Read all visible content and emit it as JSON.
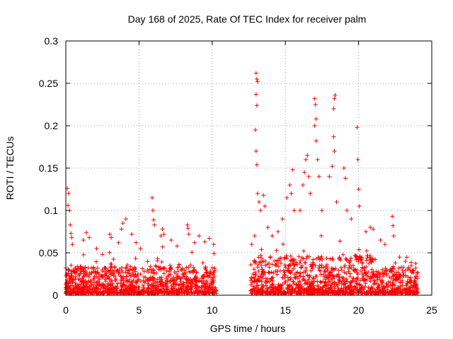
{
  "chart_data": {
    "type": "scatter",
    "title": "Day 168 of 2025, Rate Of TEC Index for receiver palm",
    "xlabel": "GPS time / hours",
    "ylabel": "ROTI / TECUs",
    "xlim": [
      0,
      25
    ],
    "ylim": [
      0,
      0.3
    ],
    "x_ticks": [
      0,
      5,
      10,
      15,
      20,
      25
    ],
    "y_ticks": [
      0,
      0.05,
      0.1,
      0.15,
      0.2,
      0.25,
      0.3
    ],
    "x_tick_labels": [
      "0",
      "5",
      "10",
      "15",
      "20",
      "25"
    ],
    "y_tick_labels": [
      "0",
      "0.05",
      "0.1",
      "0.15",
      "0.2",
      "0.25",
      "0.3"
    ],
    "grid": true,
    "marker": "+",
    "series_color": "#ff0000",
    "gap_hours": [
      10.3,
      12.6
    ],
    "points": [
      [
        0.1,
        0.126
      ],
      [
        0.2,
        0.12
      ],
      [
        0.15,
        0.106
      ],
      [
        0.25,
        0.1
      ],
      [
        0.3,
        0.083
      ],
      [
        0.35,
        0.073
      ],
      [
        0.4,
        0.068
      ],
      [
        0.45,
        0.06
      ],
      [
        1.2,
        0.065
      ],
      [
        1.4,
        0.074
      ],
      [
        1.6,
        0.068
      ],
      [
        2.1,
        0.055
      ],
      [
        2.5,
        0.048
      ],
      [
        3.0,
        0.072
      ],
      [
        3.1,
        0.068
      ],
      [
        3.6,
        0.062
      ],
      [
        3.8,
        0.078
      ],
      [
        3.9,
        0.085
      ],
      [
        4.1,
        0.09
      ],
      [
        4.5,
        0.072
      ],
      [
        4.8,
        0.062
      ],
      [
        5.1,
        0.055
      ],
      [
        5.9,
        0.115
      ],
      [
        5.95,
        0.1
      ],
      [
        6.0,
        0.089
      ],
      [
        6.05,
        0.083
      ],
      [
        6.5,
        0.07
      ],
      [
        6.6,
        0.078
      ],
      [
        6.7,
        0.072
      ],
      [
        7.2,
        0.065
      ],
      [
        7.6,
        0.058
      ],
      [
        8.3,
        0.083
      ],
      [
        8.35,
        0.079
      ],
      [
        8.4,
        0.072
      ],
      [
        8.8,
        0.062
      ],
      [
        9.1,
        0.07
      ],
      [
        9.5,
        0.063
      ],
      [
        9.8,
        0.067
      ],
      [
        10.1,
        0.06
      ],
      [
        12.7,
        0.06
      ],
      [
        12.9,
        0.07
      ],
      [
        13.0,
        0.262
      ],
      [
        13.05,
        0.255
      ],
      [
        13.1,
        0.252
      ],
      [
        13.0,
        0.237
      ],
      [
        13.05,
        0.224
      ],
      [
        12.95,
        0.195
      ],
      [
        13.0,
        0.17
      ],
      [
        13.05,
        0.154
      ],
      [
        13.1,
        0.12
      ],
      [
        13.2,
        0.11
      ],
      [
        13.3,
        0.1
      ],
      [
        13.5,
        0.118
      ],
      [
        13.6,
        0.105
      ],
      [
        13.8,
        0.08
      ],
      [
        14.1,
        0.07
      ],
      [
        14.5,
        0.075
      ],
      [
        14.8,
        0.09
      ],
      [
        15.1,
        0.115
      ],
      [
        15.3,
        0.13
      ],
      [
        15.5,
        0.148
      ],
      [
        15.4,
        0.12
      ],
      [
        15.6,
        0.1
      ],
      [
        16.0,
        0.1
      ],
      [
        16.2,
        0.13
      ],
      [
        16.3,
        0.145
      ],
      [
        16.4,
        0.16
      ],
      [
        16.5,
        0.165
      ],
      [
        16.6,
        0.14
      ],
      [
        16.7,
        0.12
      ],
      [
        17.0,
        0.232
      ],
      [
        17.05,
        0.225
      ],
      [
        17.1,
        0.208
      ],
      [
        17.0,
        0.2
      ],
      [
        17.1,
        0.182
      ],
      [
        17.2,
        0.16
      ],
      [
        17.3,
        0.14
      ],
      [
        17.5,
        0.1
      ],
      [
        18.0,
        0.14
      ],
      [
        18.2,
        0.152
      ],
      [
        18.3,
        0.22
      ],
      [
        18.35,
        0.232
      ],
      [
        18.4,
        0.236
      ],
      [
        18.3,
        0.187
      ],
      [
        18.35,
        0.17
      ],
      [
        18.5,
        0.11
      ],
      [
        19.0,
        0.15
      ],
      [
        19.1,
        0.138
      ],
      [
        19.2,
        0.1
      ],
      [
        19.5,
        0.09
      ],
      [
        19.9,
        0.198
      ],
      [
        19.95,
        0.16
      ],
      [
        20.0,
        0.125
      ],
      [
        20.05,
        0.105
      ],
      [
        20.5,
        0.075
      ],
      [
        20.8,
        0.08
      ],
      [
        21.0,
        0.078
      ],
      [
        21.5,
        0.065
      ],
      [
        21.8,
        0.06
      ],
      [
        22.3,
        0.093
      ],
      [
        22.35,
        0.082
      ],
      [
        22.4,
        0.07
      ],
      [
        22.8,
        0.045
      ],
      [
        23.2,
        0.04
      ],
      [
        23.6,
        0.035
      ],
      [
        23.9,
        0.032
      ]
    ]
  }
}
